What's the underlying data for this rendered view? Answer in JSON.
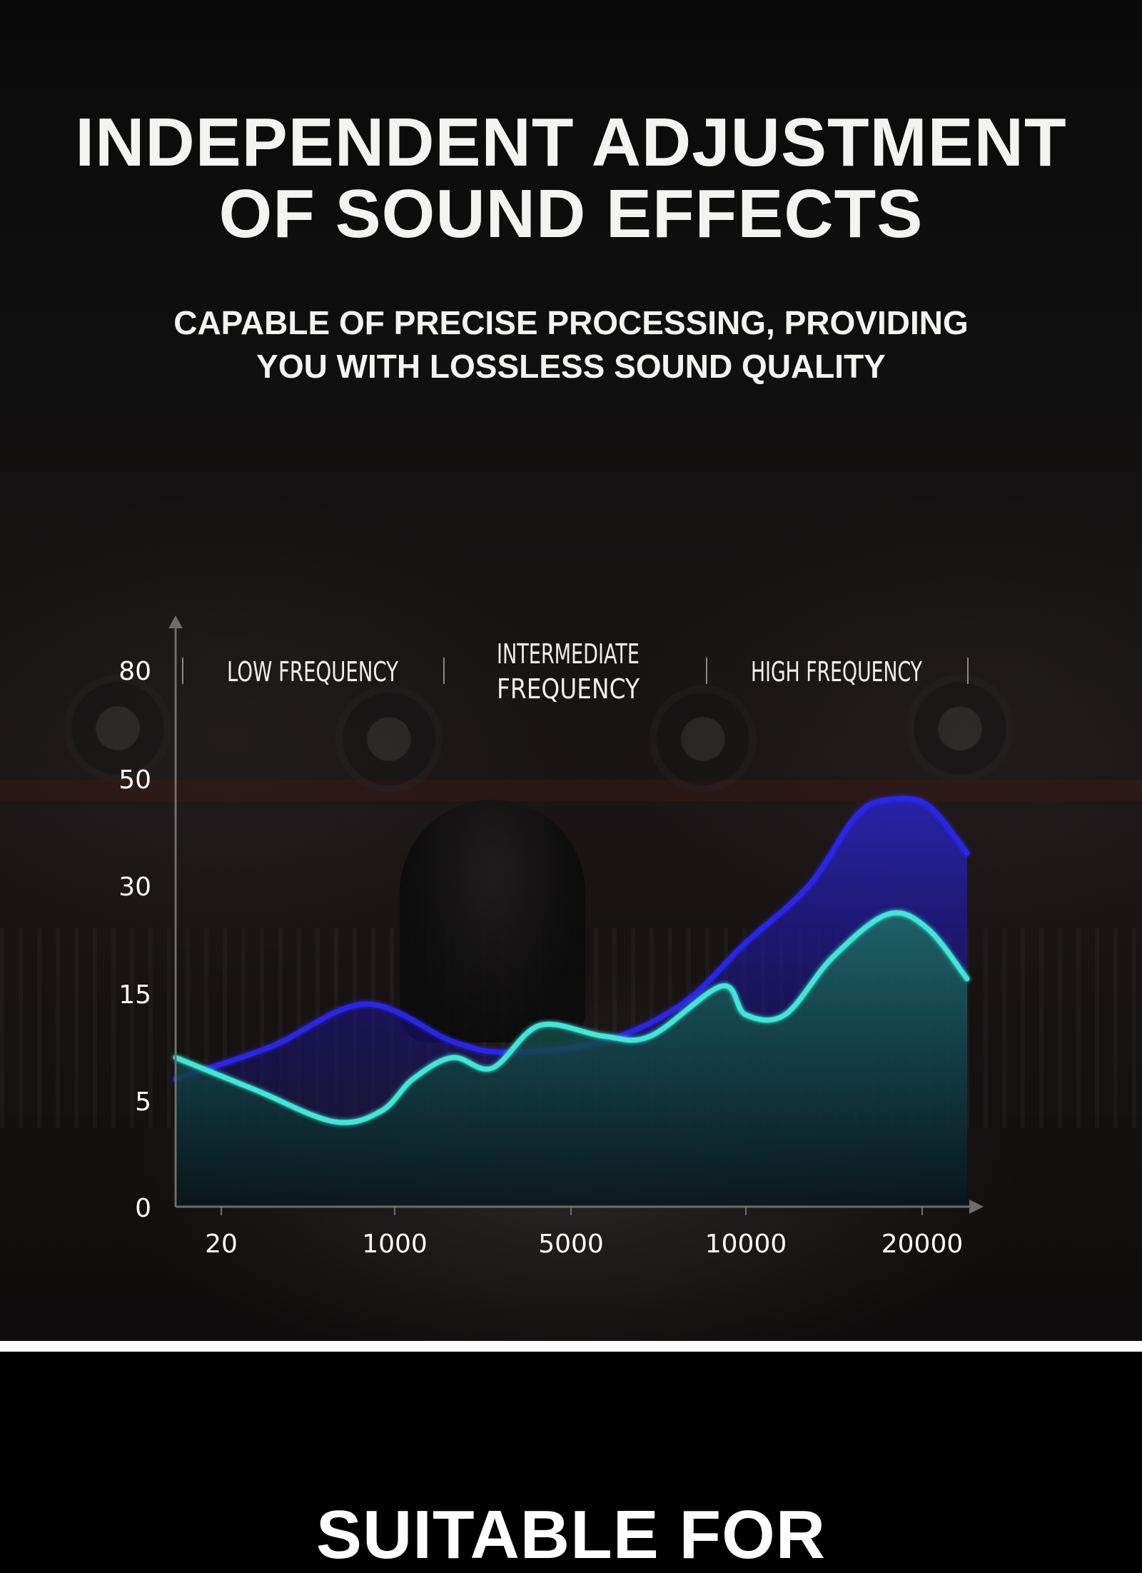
{
  "header": {
    "title_lines": [
      "INDEPENDENT ADJUSTMENT",
      "OF SOUND EFFECTS"
    ],
    "subtitle_lines": [
      "CAPABLE OF PRECISE PROCESSING, PROVIDING",
      "YOU WITH LOSSLESS SOUND QUALITY"
    ]
  },
  "chart_data": {
    "type": "area",
    "x_ticks": [
      "20",
      "1000",
      "5000",
      "10000",
      "20000"
    ],
    "y_ticks": [
      0,
      5,
      15,
      30,
      50,
      80
    ],
    "ylim": [
      0,
      80
    ],
    "grid": false,
    "bands": [
      {
        "label_lines": [
          "LOW FREQUENCY"
        ]
      },
      {
        "label_lines": [
          "INTERMEDIATE",
          "FREQUENCY"
        ]
      },
      {
        "label_lines": [
          "HIGH FREQUENCY"
        ]
      }
    ],
    "series": [
      {
        "color": "#2a26e8",
        "x_pos": [
          0,
          0.6,
          1.2,
          1.75,
          2.1,
          2.7,
          3.2,
          3.6,
          4.0,
          4.3,
          4.5,
          4.75,
          5.0
        ],
        "values": [
          7,
          10,
          14,
          10.5,
          9.5,
          10.5,
          14,
          22,
          30,
          43,
          46,
          45,
          36
        ]
      },
      {
        "color": "#3fe6d6",
        "x_pos": [
          0,
          0.5,
          1.0,
          1.3,
          1.5,
          1.75,
          2.0,
          2.3,
          2.7,
          3.0,
          3.45,
          3.6,
          3.85,
          4.15,
          4.5,
          4.75,
          5.0
        ],
        "values": [
          9,
          6,
          4,
          4.5,
          7,
          9,
          8,
          12,
          11,
          11,
          16,
          13,
          13,
          20,
          26,
          24,
          17
        ]
      }
    ]
  }
}
